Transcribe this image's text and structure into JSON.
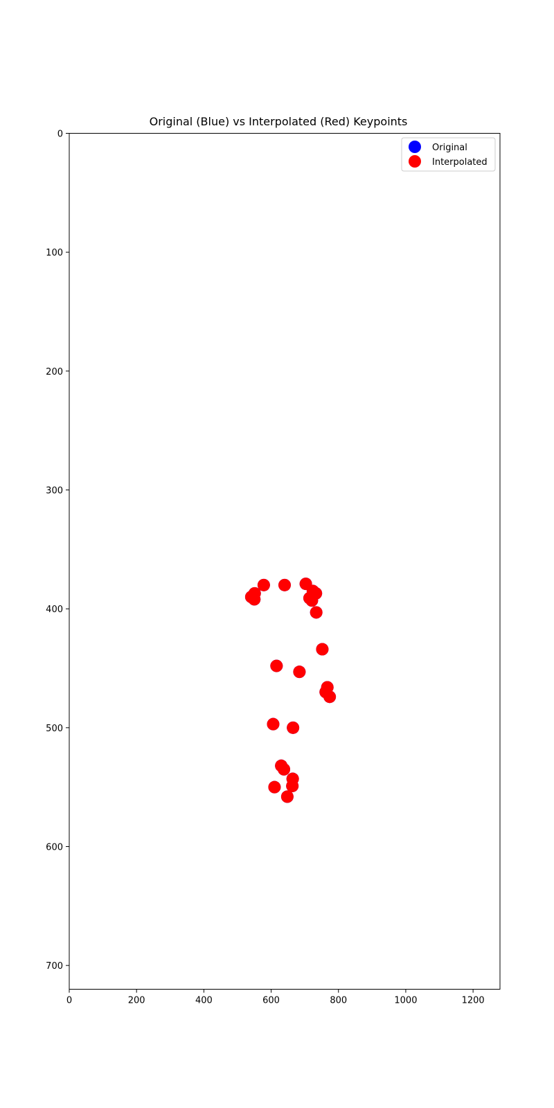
{
  "chart_data": {
    "type": "scatter",
    "title": "Original (Blue) vs Interpolated (Red) Keypoints",
    "xlabel": "",
    "ylabel": "",
    "xlim": [
      0,
      1280
    ],
    "ylim": [
      720,
      0
    ],
    "y_inverted": true,
    "grid": false,
    "legend_position": "upper right",
    "x_ticks": [
      0,
      200,
      400,
      600,
      800,
      1000,
      1200
    ],
    "y_ticks": [
      0,
      100,
      200,
      300,
      400,
      500,
      600,
      700
    ],
    "series": [
      {
        "name": "Original",
        "color": "#0000ff",
        "points": [
          [
            578,
            380
          ],
          [
            640,
            380
          ],
          [
            703,
            379
          ],
          [
            551,
            387
          ],
          [
            724,
            385
          ],
          [
            733,
            387
          ],
          [
            541,
            390
          ],
          [
            550,
            392
          ],
          [
            714,
            391
          ],
          [
            721,
            393
          ],
          [
            734,
            403
          ],
          [
            752,
            434
          ],
          [
            616,
            448
          ],
          [
            684,
            453
          ],
          [
            767,
            466
          ],
          [
            762,
            470
          ],
          [
            774,
            474
          ],
          [
            606,
            497
          ],
          [
            665,
            500
          ],
          [
            630,
            532
          ],
          [
            638,
            535
          ],
          [
            664,
            543
          ],
          [
            663,
            549
          ],
          [
            610,
            550
          ],
          [
            648,
            558
          ]
        ]
      },
      {
        "name": "Interpolated",
        "color": "#ff0000",
        "points": [
          [
            578,
            380
          ],
          [
            640,
            380
          ],
          [
            703,
            379
          ],
          [
            551,
            387
          ],
          [
            724,
            385
          ],
          [
            733,
            387
          ],
          [
            541,
            390
          ],
          [
            550,
            392
          ],
          [
            714,
            391
          ],
          [
            721,
            393
          ],
          [
            734,
            403
          ],
          [
            752,
            434
          ],
          [
            616,
            448
          ],
          [
            684,
            453
          ],
          [
            767,
            466
          ],
          [
            762,
            470
          ],
          [
            774,
            474
          ],
          [
            606,
            497
          ],
          [
            665,
            500
          ],
          [
            630,
            532
          ],
          [
            638,
            535
          ],
          [
            664,
            543
          ],
          [
            663,
            549
          ],
          [
            610,
            550
          ],
          [
            648,
            558
          ]
        ]
      }
    ]
  }
}
